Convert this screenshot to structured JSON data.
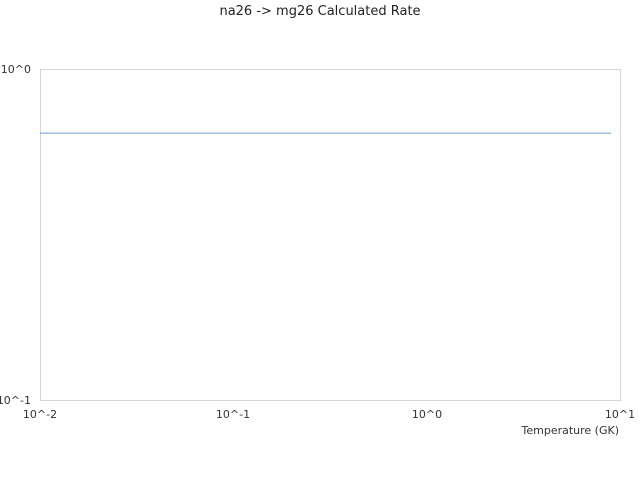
{
  "chart_data": {
    "type": "line",
    "title": "na26 -> mg26 Calculated Rate",
    "xlabel": "Temperature (GK)",
    "ylabel": "",
    "x_scale": "log",
    "y_scale": "log",
    "xlim": [
      0.01,
      10
    ],
    "ylim": [
      0.1,
      1
    ],
    "x_ticks": [
      "10^-2",
      "10^-1",
      "10^0",
      "10^1"
    ],
    "y_ticks": [
      "10^-1",
      "10^0"
    ],
    "grid": false,
    "series": [
      {
        "color": "#6a9fd8",
        "x": [
          0.01,
          9
        ],
        "y": [
          0.64,
          0.64
        ]
      }
    ]
  }
}
